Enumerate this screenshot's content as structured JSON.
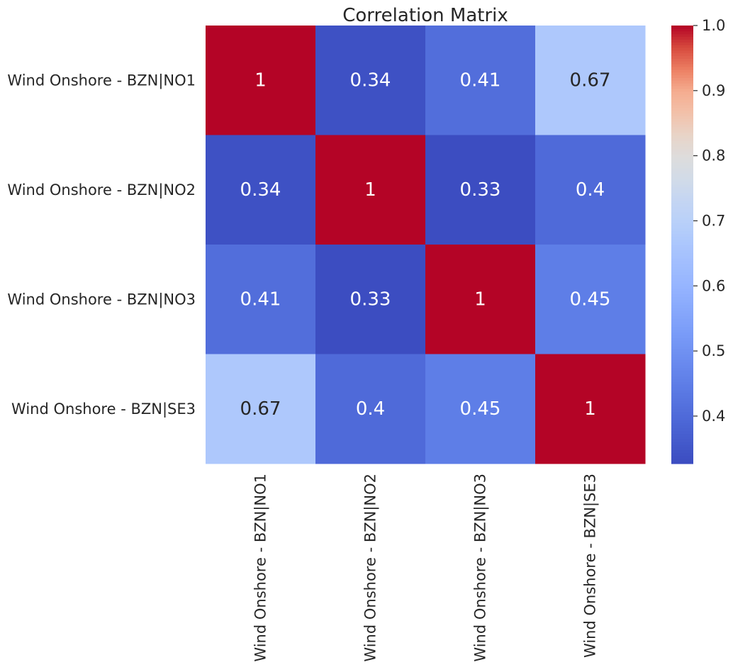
{
  "chart_data": {
    "type": "heatmap",
    "title": "Correlation Matrix",
    "row_labels": [
      "Wind Onshore - BZN|NO1",
      "Wind Onshore - BZN|NO2",
      "Wind Onshore - BZN|NO3",
      "Wind Onshore - BZN|SE3"
    ],
    "col_labels": [
      "Wind Onshore - BZN|NO1",
      "Wind Onshore - BZN|NO2",
      "Wind Onshore - BZN|NO3",
      "Wind Onshore - BZN|SE3"
    ],
    "values": [
      [
        1,
        0.34,
        0.41,
        0.67
      ],
      [
        0.34,
        1,
        0.33,
        0.4
      ],
      [
        0.41,
        0.33,
        1,
        0.45
      ],
      [
        0.67,
        0.4,
        0.45,
        1
      ]
    ],
    "annotations": [
      [
        "1",
        "0.34",
        "0.41",
        "0.67"
      ],
      [
        "0.34",
        "1",
        "0.33",
        "0.4"
      ],
      [
        "0.41",
        "0.33",
        "1",
        "0.45"
      ],
      [
        "0.67",
        "0.4",
        "0.45",
        "1"
      ]
    ],
    "colormap": "coolwarm",
    "colorbar": {
      "min": 0.327,
      "max": 1.0,
      "ticks": [
        0.4,
        0.5,
        0.6,
        0.7,
        0.8,
        0.9,
        1.0
      ],
      "tick_labels": [
        "0.4",
        "0.5",
        "0.6",
        "0.7",
        "0.8",
        "0.9",
        "1.0"
      ],
      "position": "right"
    }
  }
}
